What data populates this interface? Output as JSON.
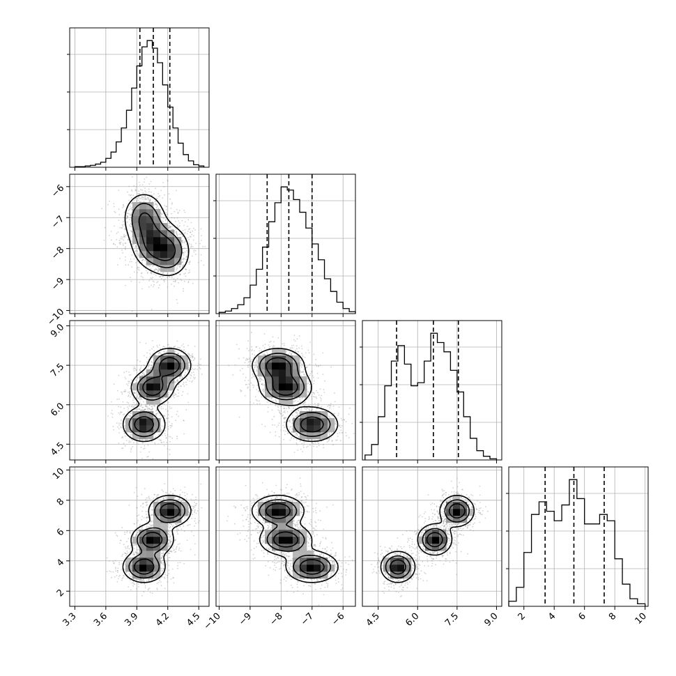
{
  "chart_data": {
    "type": "corner",
    "parameters": [
      {
        "index": 0,
        "range": [
          3.25,
          4.6
        ],
        "ticks": [
          3.3,
          3.6,
          3.9,
          4.2,
          4.5
        ],
        "tick_labels": [
          "3.3",
          "3.6",
          "3.9",
          "4.2",
          "4.5"
        ],
        "quantiles": [
          3.93,
          4.06,
          4.22
        ]
      },
      {
        "index": 1,
        "range": [
          -10.1,
          -5.6
        ],
        "ticks": [
          -10,
          -9,
          -8,
          -7,
          -6
        ],
        "tick_labels": [
          "−10",
          "−9",
          "−8",
          "−7",
          "−6"
        ],
        "quantiles": [
          -8.45,
          -7.75,
          -7.0
        ]
      },
      {
        "index": 2,
        "range": [
          3.9,
          9.2
        ],
        "ticks": [
          4.5,
          6.0,
          7.5,
          9.0
        ],
        "tick_labels": [
          "4.5",
          "6.0",
          "7.5",
          "9.0"
        ],
        "quantiles": [
          5.2,
          6.6,
          7.55
        ]
      },
      {
        "index": 3,
        "range": [
          1.0,
          10.2
        ],
        "ticks": [
          2,
          4,
          6,
          8,
          10
        ],
        "tick_labels": [
          "2",
          "4",
          "6",
          "8",
          "10"
        ],
        "quantiles": [
          3.4,
          5.3,
          7.3
        ]
      }
    ],
    "histograms": [
      {
        "param": 0,
        "bins": [
          3.3,
          3.35,
          3.4,
          3.45,
          3.5,
          3.55,
          3.6,
          3.65,
          3.7,
          3.75,
          3.8,
          3.85,
          3.9,
          3.95,
          4.0,
          4.05,
          4.1,
          4.15,
          4.2,
          4.25,
          4.3,
          4.35,
          4.4,
          4.45,
          4.5,
          4.55
        ],
        "counts": [
          1,
          1,
          2,
          3,
          5,
          8,
          14,
          24,
          40,
          62,
          90,
          125,
          160,
          190,
          200,
          188,
          165,
          130,
          95,
          62,
          38,
          20,
          10,
          4,
          2
        ]
      },
      {
        "param": 1,
        "bins": [
          -10.0,
          -9.8,
          -9.6,
          -9.4,
          -9.2,
          -9.0,
          -8.8,
          -8.6,
          -8.4,
          -8.2,
          -8.0,
          -7.8,
          -7.6,
          -7.4,
          -7.2,
          -7.0,
          -6.8,
          -6.6,
          -6.4,
          -6.2,
          -6.0,
          -5.8,
          -5.6
        ],
        "counts": [
          2,
          4,
          8,
          14,
          25,
          45,
          70,
          105,
          145,
          175,
          200,
          195,
          180,
          160,
          135,
          110,
          85,
          55,
          35,
          18,
          8,
          3
        ]
      },
      {
        "param": 2,
        "bins": [
          4.0,
          4.25,
          4.5,
          4.75,
          5.0,
          5.25,
          5.5,
          5.75,
          6.0,
          6.25,
          6.5,
          6.75,
          7.0,
          7.25,
          7.5,
          7.75,
          8.0,
          8.25,
          8.5,
          8.75,
          9.0
        ],
        "counts": [
          8,
          25,
          70,
          120,
          160,
          185,
          155,
          120,
          125,
          160,
          205,
          190,
          175,
          145,
          110,
          70,
          35,
          15,
          6,
          2
        ]
      },
      {
        "param": 3,
        "bins": [
          1.0,
          1.5,
          2.0,
          2.5,
          3.0,
          3.5,
          4.0,
          4.5,
          5.0,
          5.5,
          6.0,
          6.5,
          7.0,
          7.5,
          8.0,
          8.5,
          9.0,
          9.5,
          10.0
        ],
        "counts": [
          8,
          30,
          85,
          145,
          165,
          150,
          135,
          160,
          200,
          170,
          130,
          130,
          145,
          135,
          75,
          35,
          12,
          4
        ]
      }
    ],
    "modes": [
      {
        "center": [
          3.97,
          -7.0,
          5.25,
          3.6
        ],
        "sd": [
          0.11,
          0.45,
          0.35,
          0.55
        ]
      },
      {
        "center": [
          4.05,
          -7.85,
          6.65,
          5.4
        ],
        "sd": [
          0.11,
          0.45,
          0.35,
          0.55
        ]
      },
      {
        "center": [
          4.22,
          -8.1,
          7.5,
          7.3
        ],
        "sd": [
          0.11,
          0.45,
          0.35,
          0.55
        ]
      }
    ],
    "panels_2d": [
      {
        "x": 0,
        "y": 1
      },
      {
        "x": 0,
        "y": 2
      },
      {
        "x": 1,
        "y": 2
      },
      {
        "x": 0,
        "y": 3
      },
      {
        "x": 1,
        "y": 3
      },
      {
        "x": 2,
        "y": 3
      }
    ],
    "grid": true
  }
}
